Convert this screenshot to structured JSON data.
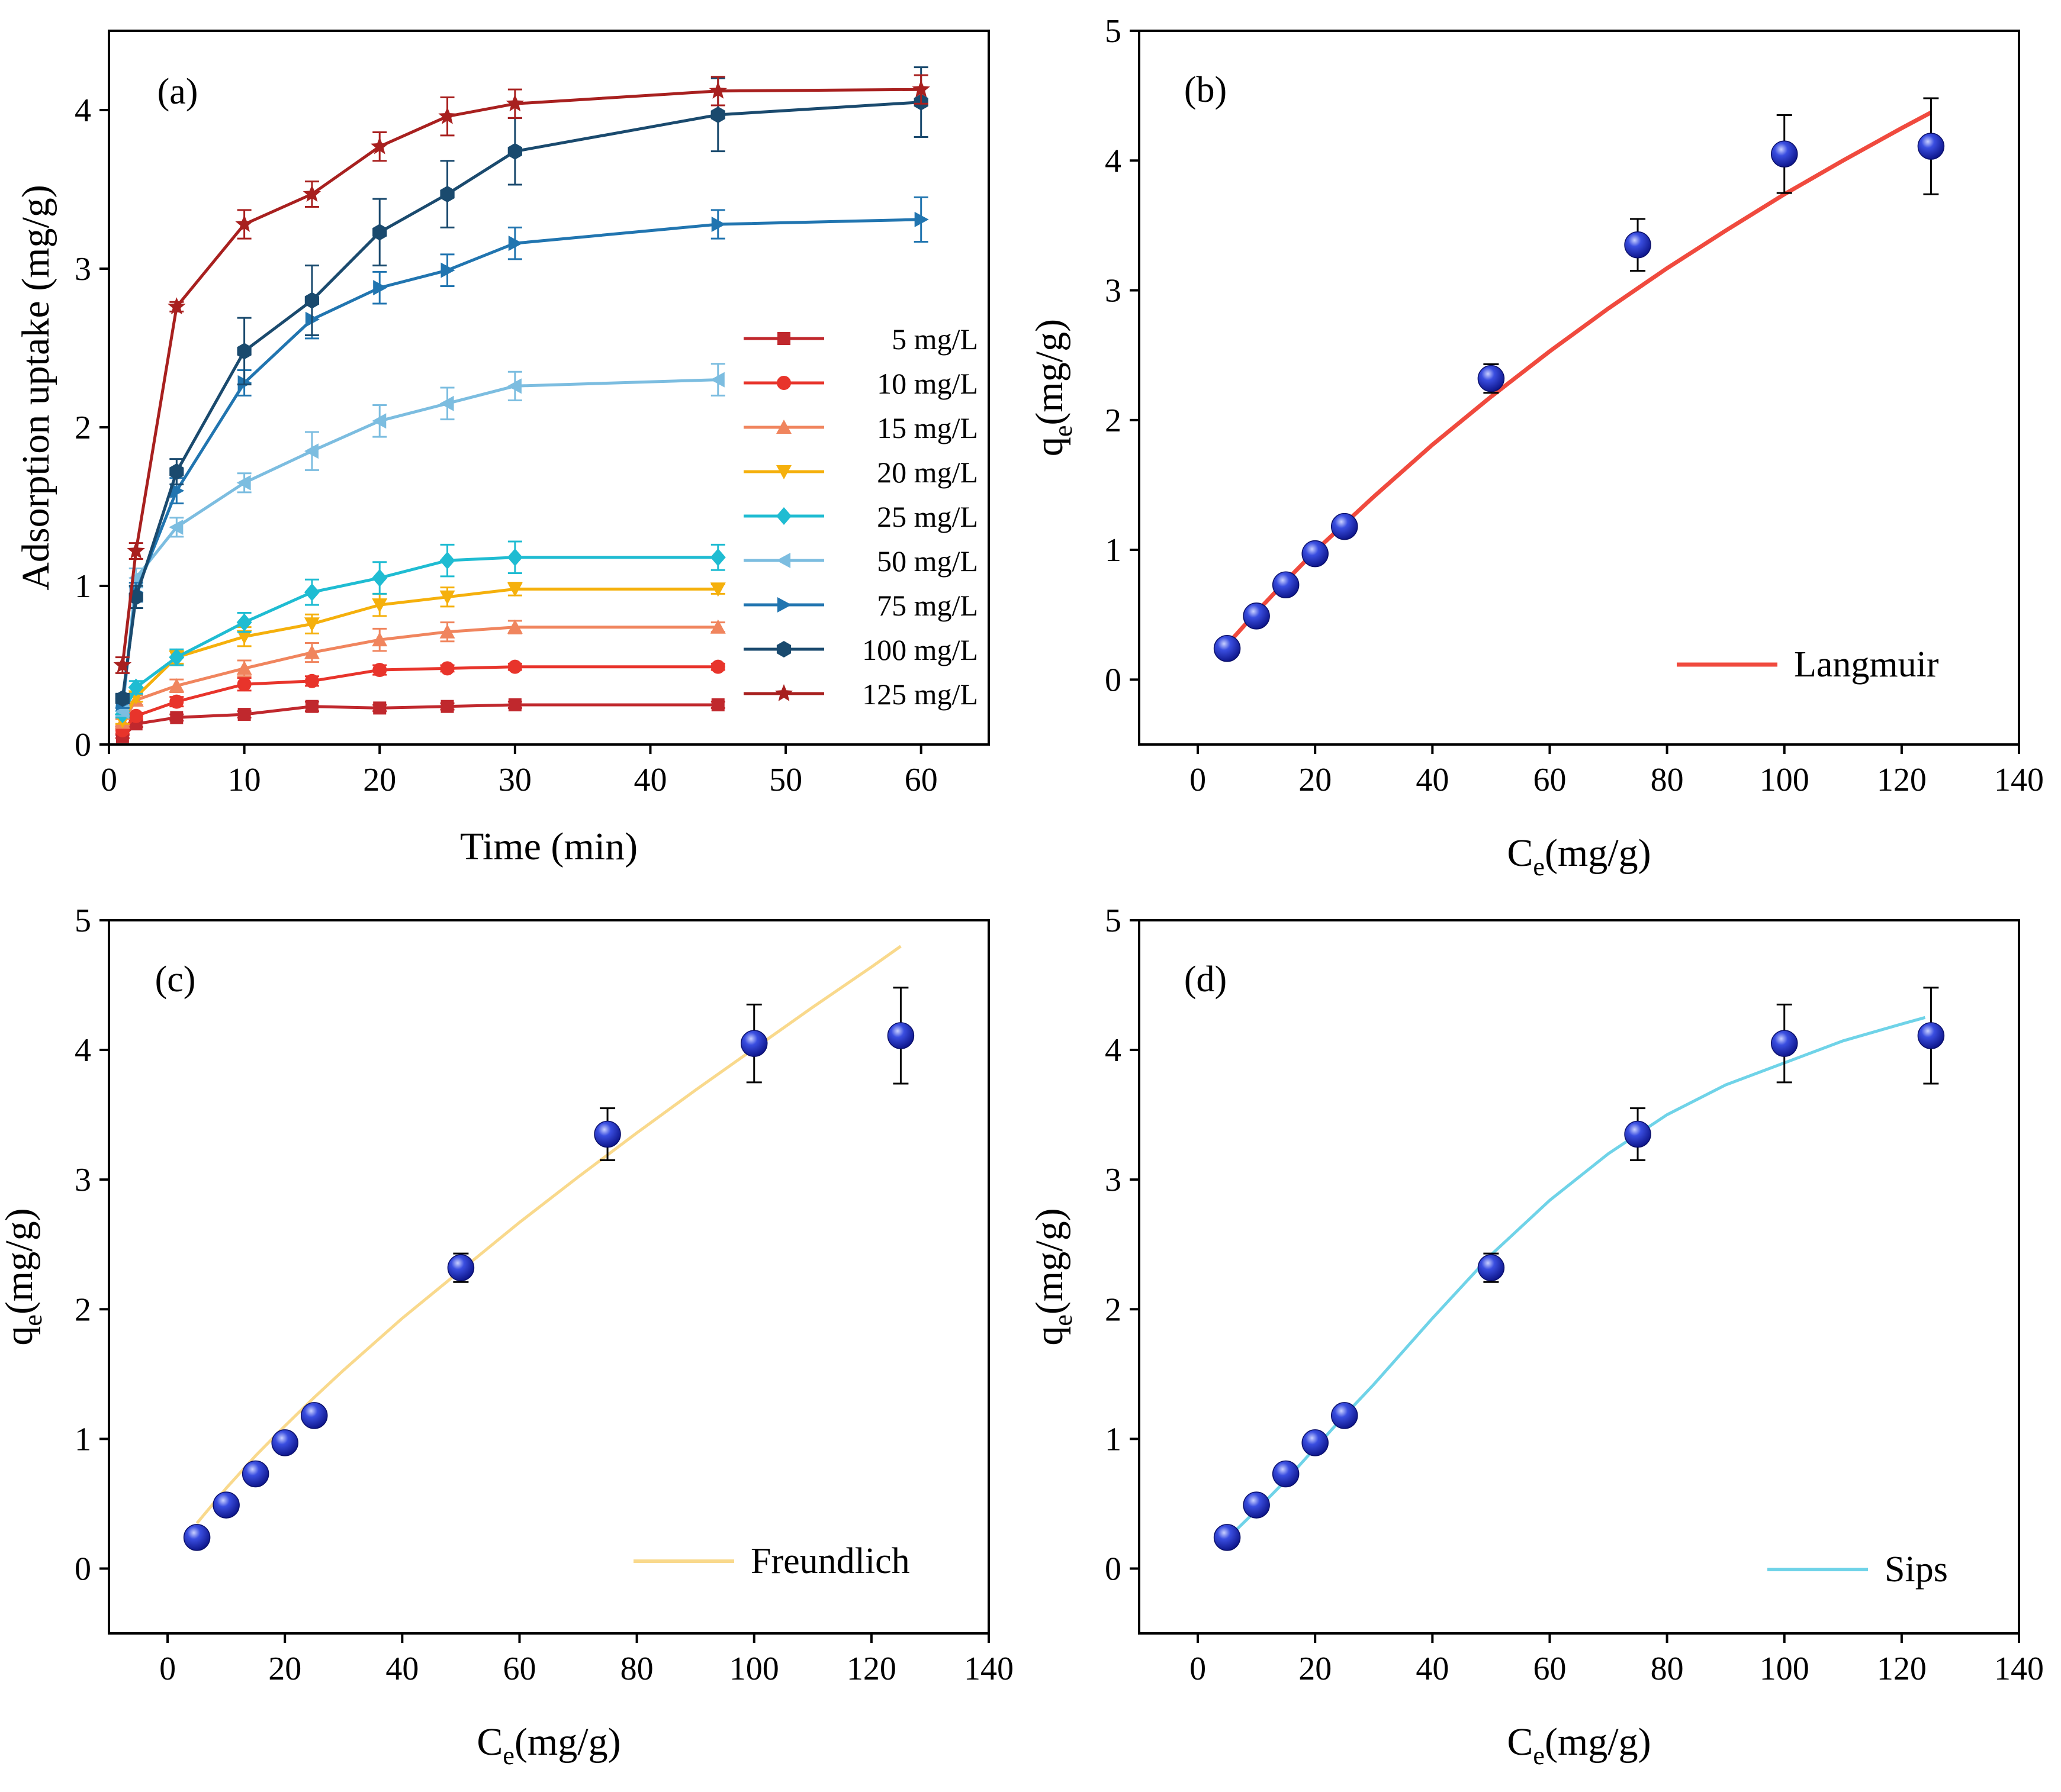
{
  "figure": {
    "panels": [
      {
        "id": "a",
        "label": "(a)"
      },
      {
        "id": "b",
        "label": "(b)"
      },
      {
        "id": "c",
        "label": "(c)"
      },
      {
        "id": "d",
        "label": "(d)"
      }
    ]
  },
  "chart_data": [
    {
      "panel": "(a)",
      "type": "line",
      "xlabel": "Time (min)",
      "ylabel": "Adsorption uptake (mg/g)",
      "xlim": [
        0,
        65
      ],
      "ylim": [
        0,
        4.5
      ],
      "xticks": [
        0,
        10,
        20,
        30,
        40,
        50,
        60
      ],
      "yticks": [
        0,
        1,
        2,
        3,
        4
      ],
      "legend_position": "right",
      "x": [
        1,
        2,
        5,
        10,
        15,
        20,
        25,
        30,
        45,
        60
      ],
      "series": [
        {
          "name": "5 mg/L",
          "color": "#c0282d",
          "marker": "square",
          "x": [
            1,
            2,
            5,
            10,
            15,
            20,
            25,
            30,
            45
          ],
          "values": [
            0.05,
            0.13,
            0.17,
            0.19,
            0.24,
            0.23,
            0.24,
            0.25,
            0.25
          ],
          "errors": [
            0.01,
            0.02,
            0.02,
            0.02,
            0.03,
            0.02,
            0.02,
            0.02,
            0.02
          ]
        },
        {
          "name": "10 mg/L",
          "color": "#e8342b",
          "marker": "circle",
          "x": [
            1,
            2,
            5,
            10,
            15,
            20,
            25,
            30,
            45
          ],
          "values": [
            0.09,
            0.18,
            0.27,
            0.38,
            0.4,
            0.47,
            0.48,
            0.49,
            0.49
          ],
          "errors": [
            0.02,
            0.02,
            0.03,
            0.04,
            0.03,
            0.03,
            0.02,
            0.02,
            0.02
          ]
        },
        {
          "name": "15 mg/L",
          "color": "#f0855e",
          "marker": "triangle-up",
          "x": [
            1,
            2,
            5,
            10,
            15,
            20,
            25,
            30,
            45
          ],
          "values": [
            0.14,
            0.28,
            0.37,
            0.48,
            0.58,
            0.66,
            0.71,
            0.74,
            0.74
          ],
          "errors": [
            0.02,
            0.03,
            0.04,
            0.05,
            0.06,
            0.07,
            0.06,
            0.04,
            0.03
          ]
        },
        {
          "name": "20 mg/L",
          "color": "#f5b00c",
          "marker": "triangle-down",
          "x": [
            1,
            2,
            5,
            10,
            15,
            20,
            25,
            30,
            45
          ],
          "values": [
            0.15,
            0.3,
            0.55,
            0.68,
            0.76,
            0.88,
            0.93,
            0.98,
            0.98
          ],
          "errors": [
            0.02,
            0.03,
            0.04,
            0.06,
            0.06,
            0.07,
            0.06,
            0.04,
            0.03
          ]
        },
        {
          "name": "25 mg/L",
          "color": "#1fbcd2",
          "marker": "diamond",
          "x": [
            1,
            2,
            5,
            10,
            15,
            20,
            25,
            30,
            45
          ],
          "values": [
            0.19,
            0.36,
            0.55,
            0.77,
            0.96,
            1.05,
            1.16,
            1.18,
            1.18
          ],
          "errors": [
            0.02,
            0.04,
            0.05,
            0.06,
            0.08,
            0.1,
            0.1,
            0.1,
            0.08
          ]
        },
        {
          "name": "50 mg/L",
          "color": "#7cbde0",
          "marker": "triangle-left",
          "x": [
            1,
            2,
            5,
            10,
            15,
            20,
            25,
            30,
            45
          ],
          "values": [
            0.21,
            1.05,
            1.37,
            1.65,
            1.85,
            2.04,
            2.15,
            2.26,
            2.3
          ],
          "errors": [
            0.03,
            0.06,
            0.06,
            0.06,
            0.12,
            0.1,
            0.1,
            0.09,
            0.1
          ]
        },
        {
          "name": "75 mg/L",
          "color": "#2175b0",
          "marker": "triangle-right",
          "x": [
            1,
            2,
            5,
            10,
            15,
            20,
            25,
            30,
            45,
            60
          ],
          "values": [
            0.26,
            0.96,
            1.6,
            2.28,
            2.68,
            2.88,
            2.99,
            3.16,
            3.28,
            3.31
          ],
          "errors": [
            0.03,
            0.06,
            0.08,
            0.08,
            0.12,
            0.1,
            0.1,
            0.1,
            0.09,
            0.14
          ]
        },
        {
          "name": "100 mg/L",
          "color": "#1a4a6e",
          "marker": "hexagon",
          "x": [
            1,
            2,
            5,
            10,
            15,
            20,
            25,
            30,
            45,
            60
          ],
          "values": [
            0.29,
            0.93,
            1.72,
            2.48,
            2.8,
            3.23,
            3.47,
            3.74,
            3.97,
            4.05
          ],
          "errors": [
            0.03,
            0.07,
            0.08,
            0.21,
            0.22,
            0.21,
            0.21,
            0.21,
            0.23,
            0.22
          ]
        },
        {
          "name": "125 mg/L",
          "color": "#a8201f",
          "marker": "star",
          "x": [
            1,
            2,
            5,
            10,
            15,
            20,
            25,
            30,
            45,
            60
          ],
          "values": [
            0.5,
            1.22,
            2.76,
            3.28,
            3.47,
            3.77,
            3.96,
            4.04,
            4.12,
            4.13
          ],
          "errors": [
            0.05,
            0.05,
            0.03,
            0.09,
            0.08,
            0.09,
            0.12,
            0.09,
            0.09,
            0.09
          ]
        }
      ]
    },
    {
      "panel": "(b)",
      "type": "scatter",
      "xlabel": "C",
      "xlabel_sub": "e",
      "xlabel_unit": "(mg/g)",
      "ylabel": "q",
      "ylabel_sub": "e",
      "ylabel_unit": "(mg/g)",
      "xlim": [
        -10,
        140
      ],
      "ylim": [
        -0.5,
        5
      ],
      "xticks": [
        0,
        20,
        40,
        60,
        80,
        100,
        120,
        140
      ],
      "yticks": [
        0,
        1,
        2,
        3,
        4,
        5
      ],
      "points": {
        "x": [
          5,
          10,
          15,
          20,
          25,
          50,
          75,
          100,
          125
        ],
        "y": [
          0.24,
          0.49,
          0.73,
          0.97,
          1.18,
          2.32,
          3.35,
          4.05,
          4.11
        ],
        "errors": [
          0.03,
          0.04,
          0.05,
          0.06,
          0.05,
          0.11,
          0.2,
          0.3,
          0.37
        ],
        "color": "#2a3bd0"
      },
      "fit": {
        "name": "Langmuir",
        "color": "#f04a3e",
        "x": [
          5,
          10,
          15,
          20,
          25,
          30,
          40,
          50,
          60,
          70,
          80,
          90,
          100,
          110,
          120,
          125
        ],
        "y": [
          0.27,
          0.52,
          0.76,
          0.99,
          1.2,
          1.41,
          1.81,
          2.18,
          2.53,
          2.86,
          3.17,
          3.46,
          3.74,
          4.0,
          4.25,
          4.37
        ]
      },
      "legend_position": "bottom-right"
    },
    {
      "panel": "(c)",
      "type": "scatter",
      "xlabel": "C",
      "xlabel_sub": "e",
      "xlabel_unit": "(mg/g)",
      "ylabel": "q",
      "ylabel_sub": "e",
      "ylabel_unit": "(mg/g)",
      "xlim": [
        -10,
        140
      ],
      "ylim": [
        -0.5,
        5
      ],
      "xticks": [
        0,
        20,
        40,
        60,
        80,
        100,
        120,
        140
      ],
      "yticks": [
        0,
        1,
        2,
        3,
        4,
        5
      ],
      "points": {
        "x": [
          5,
          10,
          15,
          20,
          25,
          50,
          75,
          100,
          125
        ],
        "y": [
          0.24,
          0.49,
          0.73,
          0.97,
          1.18,
          2.32,
          3.35,
          4.05,
          4.11
        ],
        "errors": [
          0.03,
          0.04,
          0.05,
          0.06,
          0.05,
          0.11,
          0.2,
          0.3,
          0.37
        ],
        "color": "#2a3bd0"
      },
      "fit": {
        "name": "Freundlich",
        "color": "#f9d98c",
        "x": [
          5,
          10,
          15,
          20,
          25,
          30,
          40,
          50,
          60,
          70,
          80,
          90,
          100,
          110,
          120,
          125
        ],
        "y": [
          0.35,
          0.62,
          0.87,
          1.1,
          1.32,
          1.53,
          1.93,
          2.3,
          2.67,
          3.02,
          3.36,
          3.69,
          4.01,
          4.33,
          4.64,
          4.8
        ]
      },
      "legend_position": "bottom-right"
    },
    {
      "panel": "(d)",
      "type": "scatter",
      "xlabel": "C",
      "xlabel_sub": "e",
      "xlabel_unit": "(mg/g)",
      "ylabel": "q",
      "ylabel_sub": "e",
      "ylabel_unit": "(mg/g)",
      "xlim": [
        -10,
        140
      ],
      "ylim": [
        -0.5,
        5
      ],
      "xticks": [
        0,
        20,
        40,
        60,
        80,
        100,
        120,
        140
      ],
      "yticks": [
        0,
        1,
        2,
        3,
        4,
        5
      ],
      "points": {
        "x": [
          5,
          10,
          15,
          20,
          25,
          50,
          75,
          100,
          125
        ],
        "y": [
          0.24,
          0.49,
          0.73,
          0.97,
          1.18,
          2.32,
          3.35,
          4.05,
          4.11
        ],
        "errors": [
          0.03,
          0.04,
          0.05,
          0.06,
          0.05,
          0.11,
          0.2,
          0.3,
          0.37
        ],
        "color": "#2a3bd0"
      },
      "fit": {
        "name": "Sips",
        "color": "#6fd3e8",
        "x": [
          5,
          10,
          15,
          20,
          25,
          30,
          40,
          50,
          60,
          70,
          80,
          90,
          100,
          110,
          120,
          124
        ],
        "y": [
          0.23,
          0.45,
          0.68,
          0.93,
          1.18,
          1.42,
          1.93,
          2.42,
          2.84,
          3.2,
          3.5,
          3.73,
          3.9,
          4.07,
          4.2,
          4.25
        ]
      },
      "legend_position": "bottom-right"
    }
  ]
}
